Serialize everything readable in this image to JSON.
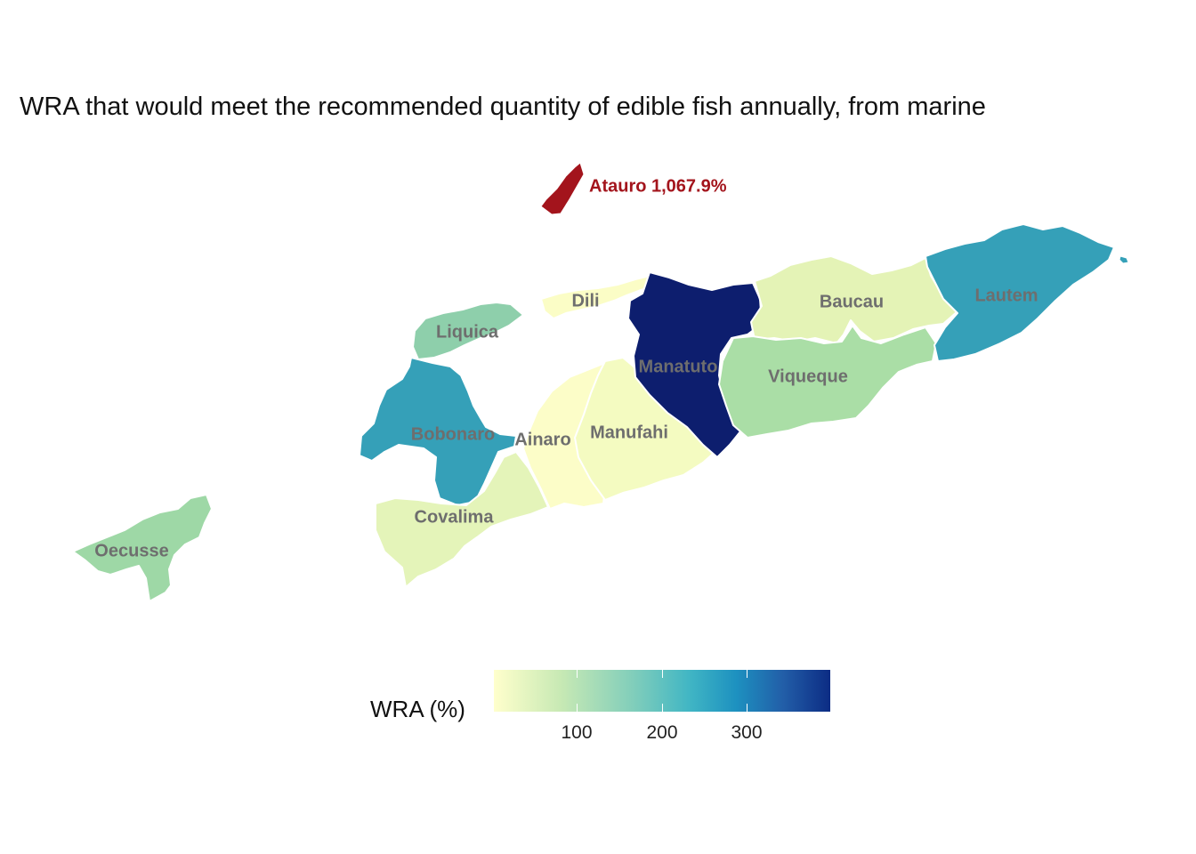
{
  "title": "WRA that would meet the recommended quantity of edible fish annually, from marine",
  "highlight": {
    "name": "Atauro",
    "label": "Atauro 1,067.9%",
    "value_pct": 1067.9,
    "color": "#a3141c"
  },
  "legend": {
    "title": "WRA (%)",
    "ticks": [
      {
        "value": 100,
        "label": "100"
      },
      {
        "value": 200,
        "label": "200"
      },
      {
        "value": 300,
        "label": "300"
      }
    ],
    "palette": [
      "#ffffcc",
      "#c7e9b4",
      "#7fcdbb",
      "#41b6c4",
      "#1d91c0",
      "#225ea8",
      "#0c2c84"
    ]
  },
  "regions": [
    {
      "id": "oecusse",
      "name": "Oecusse",
      "color": "#9ed8a6"
    },
    {
      "id": "liquica",
      "name": "Liquica",
      "color": "#8ecfab"
    },
    {
      "id": "dili",
      "name": "Dili",
      "color": "#fbfdc6"
    },
    {
      "id": "bobonaro",
      "name": "Bobonaro",
      "color": "#35a0b8"
    },
    {
      "id": "covalima",
      "name": "Covalima",
      "color": "#e4f4b9"
    },
    {
      "id": "ainaro",
      "name": "Ainaro",
      "color": "#fcfdc8"
    },
    {
      "id": "manufahi",
      "name": "Manufahi",
      "color": "#f4fbc1"
    },
    {
      "id": "manatuto",
      "name": "Manatuto",
      "color": "#0d1e6e"
    },
    {
      "id": "baucau",
      "name": "Baucau",
      "color": "#e4f3b6"
    },
    {
      "id": "viqueque",
      "name": "Viqueque",
      "color": "#aadea6"
    },
    {
      "id": "lautem",
      "name": "Lautem",
      "color": "#35a0b8"
    },
    {
      "id": "southcoast",
      "name": "",
      "color": "#c3e6b0"
    }
  ]
}
